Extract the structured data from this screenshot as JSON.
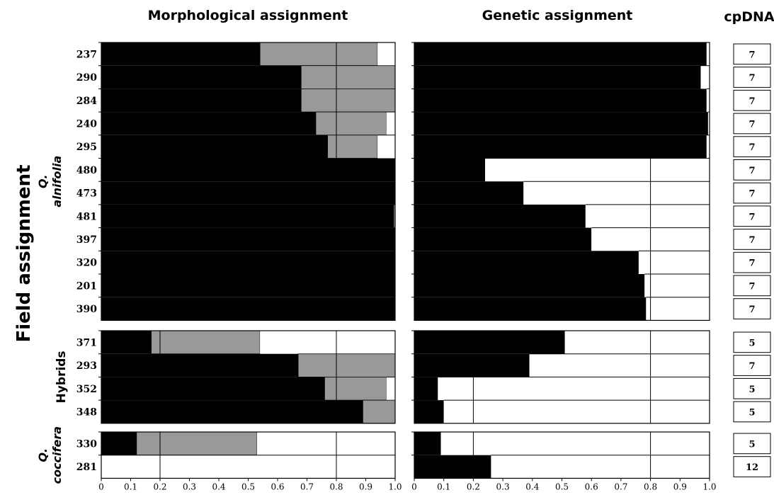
{
  "chart_data": {
    "type": "bar",
    "orientation": "horizontal-stacked",
    "titles": {
      "morph": "Morphological assignment",
      "gen": "Genetic assignment",
      "cp": "cpDNA"
    },
    "ylabel": "Field assignment",
    "xlim": [
      0,
      1
    ],
    "xticks": [
      "0",
      "0.1",
      "0.2",
      "0.3",
      "0.4",
      "0.5",
      "0.6",
      "0.7",
      "0.8",
      "0.9",
      "1.0"
    ],
    "groups": [
      {
        "label_italic": "Q.",
        "label": "alnifolia",
        "italic": true,
        "samples": [
          "237",
          "290",
          "284",
          "240",
          "295",
          "480",
          "473",
          "481",
          "397",
          "320",
          "201",
          "390"
        ],
        "morph_black": [
          0.54,
          0.68,
          0.68,
          0.73,
          0.77,
          1.0,
          1.0,
          0.995,
          1.0,
          1.0,
          1.0,
          1.0
        ],
        "morph_grey": [
          0.4,
          0.32,
          0.32,
          0.24,
          0.17,
          0.0,
          0.0,
          0.005,
          0.0,
          0.0,
          0.0,
          0.0
        ],
        "gen_black": [
          0.99,
          0.97,
          0.99,
          0.995,
          0.99,
          0.24,
          0.37,
          0.58,
          0.6,
          0.76,
          0.78,
          0.785
        ],
        "morph_lines": [
          0.8,
          0.8,
          0.8,
          0.8,
          0.8,
          null,
          null,
          null,
          null,
          null,
          null,
          null
        ],
        "gen_lines": [
          null,
          null,
          null,
          null,
          null,
          0.8,
          0.8,
          0.8,
          0.8,
          0.8,
          0.8,
          0.8
        ],
        "cpdna": [
          "7",
          "7",
          "7",
          "7",
          "7",
          "7",
          "7",
          "7",
          "7",
          "7",
          "7",
          "7"
        ]
      },
      {
        "label_italic": "",
        "label": "Hybrids",
        "italic": false,
        "samples": [
          "371",
          "293",
          "352",
          "348"
        ],
        "morph_black": [
          0.17,
          0.67,
          0.76,
          0.89
        ],
        "morph_grey": [
          0.37,
          0.33,
          0.21,
          0.11
        ],
        "gen_black": [
          0.51,
          0.39,
          0.08,
          0.1
        ],
        "morph_lines": [
          [
            0.2,
            0.8
          ],
          0.8,
          0.8,
          null
        ],
        "gen_lines": [
          0.8,
          0.8,
          [
            0.2,
            0.8
          ],
          [
            0.2,
            0.8
          ]
        ],
        "cpdna": [
          "5",
          "7",
          "5",
          "5"
        ]
      },
      {
        "label_italic": "Q.",
        "label": "coccifera",
        "italic": true,
        "samples": [
          "330",
          "281"
        ],
        "morph_black": [
          0.12,
          0.0
        ],
        "morph_grey": [
          0.41,
          0.0
        ],
        "gen_black": [
          0.09,
          0.26
        ],
        "morph_lines": [
          [
            0.2,
            0.8
          ],
          [
            0.2,
            0.8
          ]
        ],
        "gen_lines": [
          [
            0.2,
            0.8
          ],
          [
            0.2,
            0.8
          ]
        ],
        "cpdna": [
          "5",
          "12"
        ]
      }
    ],
    "colors": {
      "black": "#000000",
      "grey": "#999999",
      "white": "#ffffff"
    }
  }
}
